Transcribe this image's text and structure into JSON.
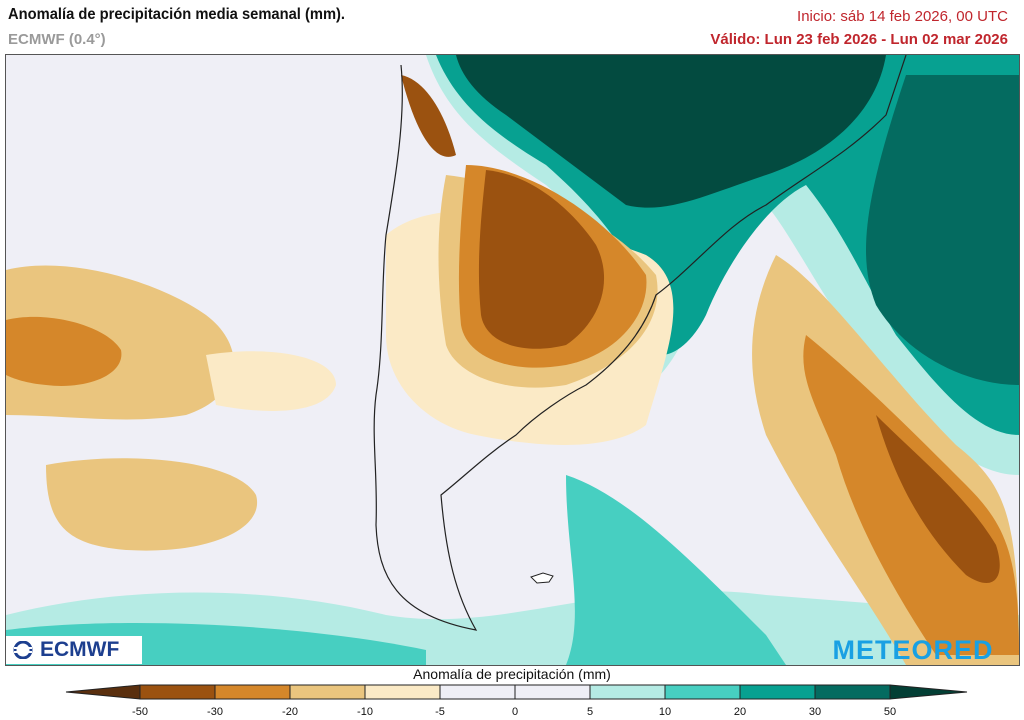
{
  "header": {
    "title": "Anomalía de precipitación media semanal (mm).",
    "model": "ECMWF (0.4°)",
    "init": "Inicio:  sáb 14 feb 2026, 00 UTC",
    "valid": "Válido: Lun 23 feb 2026 - Lun 02 mar 2026"
  },
  "logos": {
    "left": "ECMWF",
    "right": "METEORED"
  },
  "colorbar": {
    "title": "Anomalía de precipitación (mm)",
    "ticks": [
      "-50",
      "-30",
      "-20",
      "-10",
      "-5",
      "0",
      "5",
      "10",
      "20",
      "30",
      "50"
    ],
    "under_color": "#5a2f0e",
    "over_color": "#033f35",
    "colors": [
      "#9b5210",
      "#d5872a",
      "#eac57e",
      "#fbeac6",
      "#efeff6",
      "#efeff6",
      "#b5ebe4",
      "#47cfc1",
      "#07a191",
      "#046b60"
    ]
  },
  "map": {
    "region": "South America south",
    "background": "#efeff6"
  }
}
